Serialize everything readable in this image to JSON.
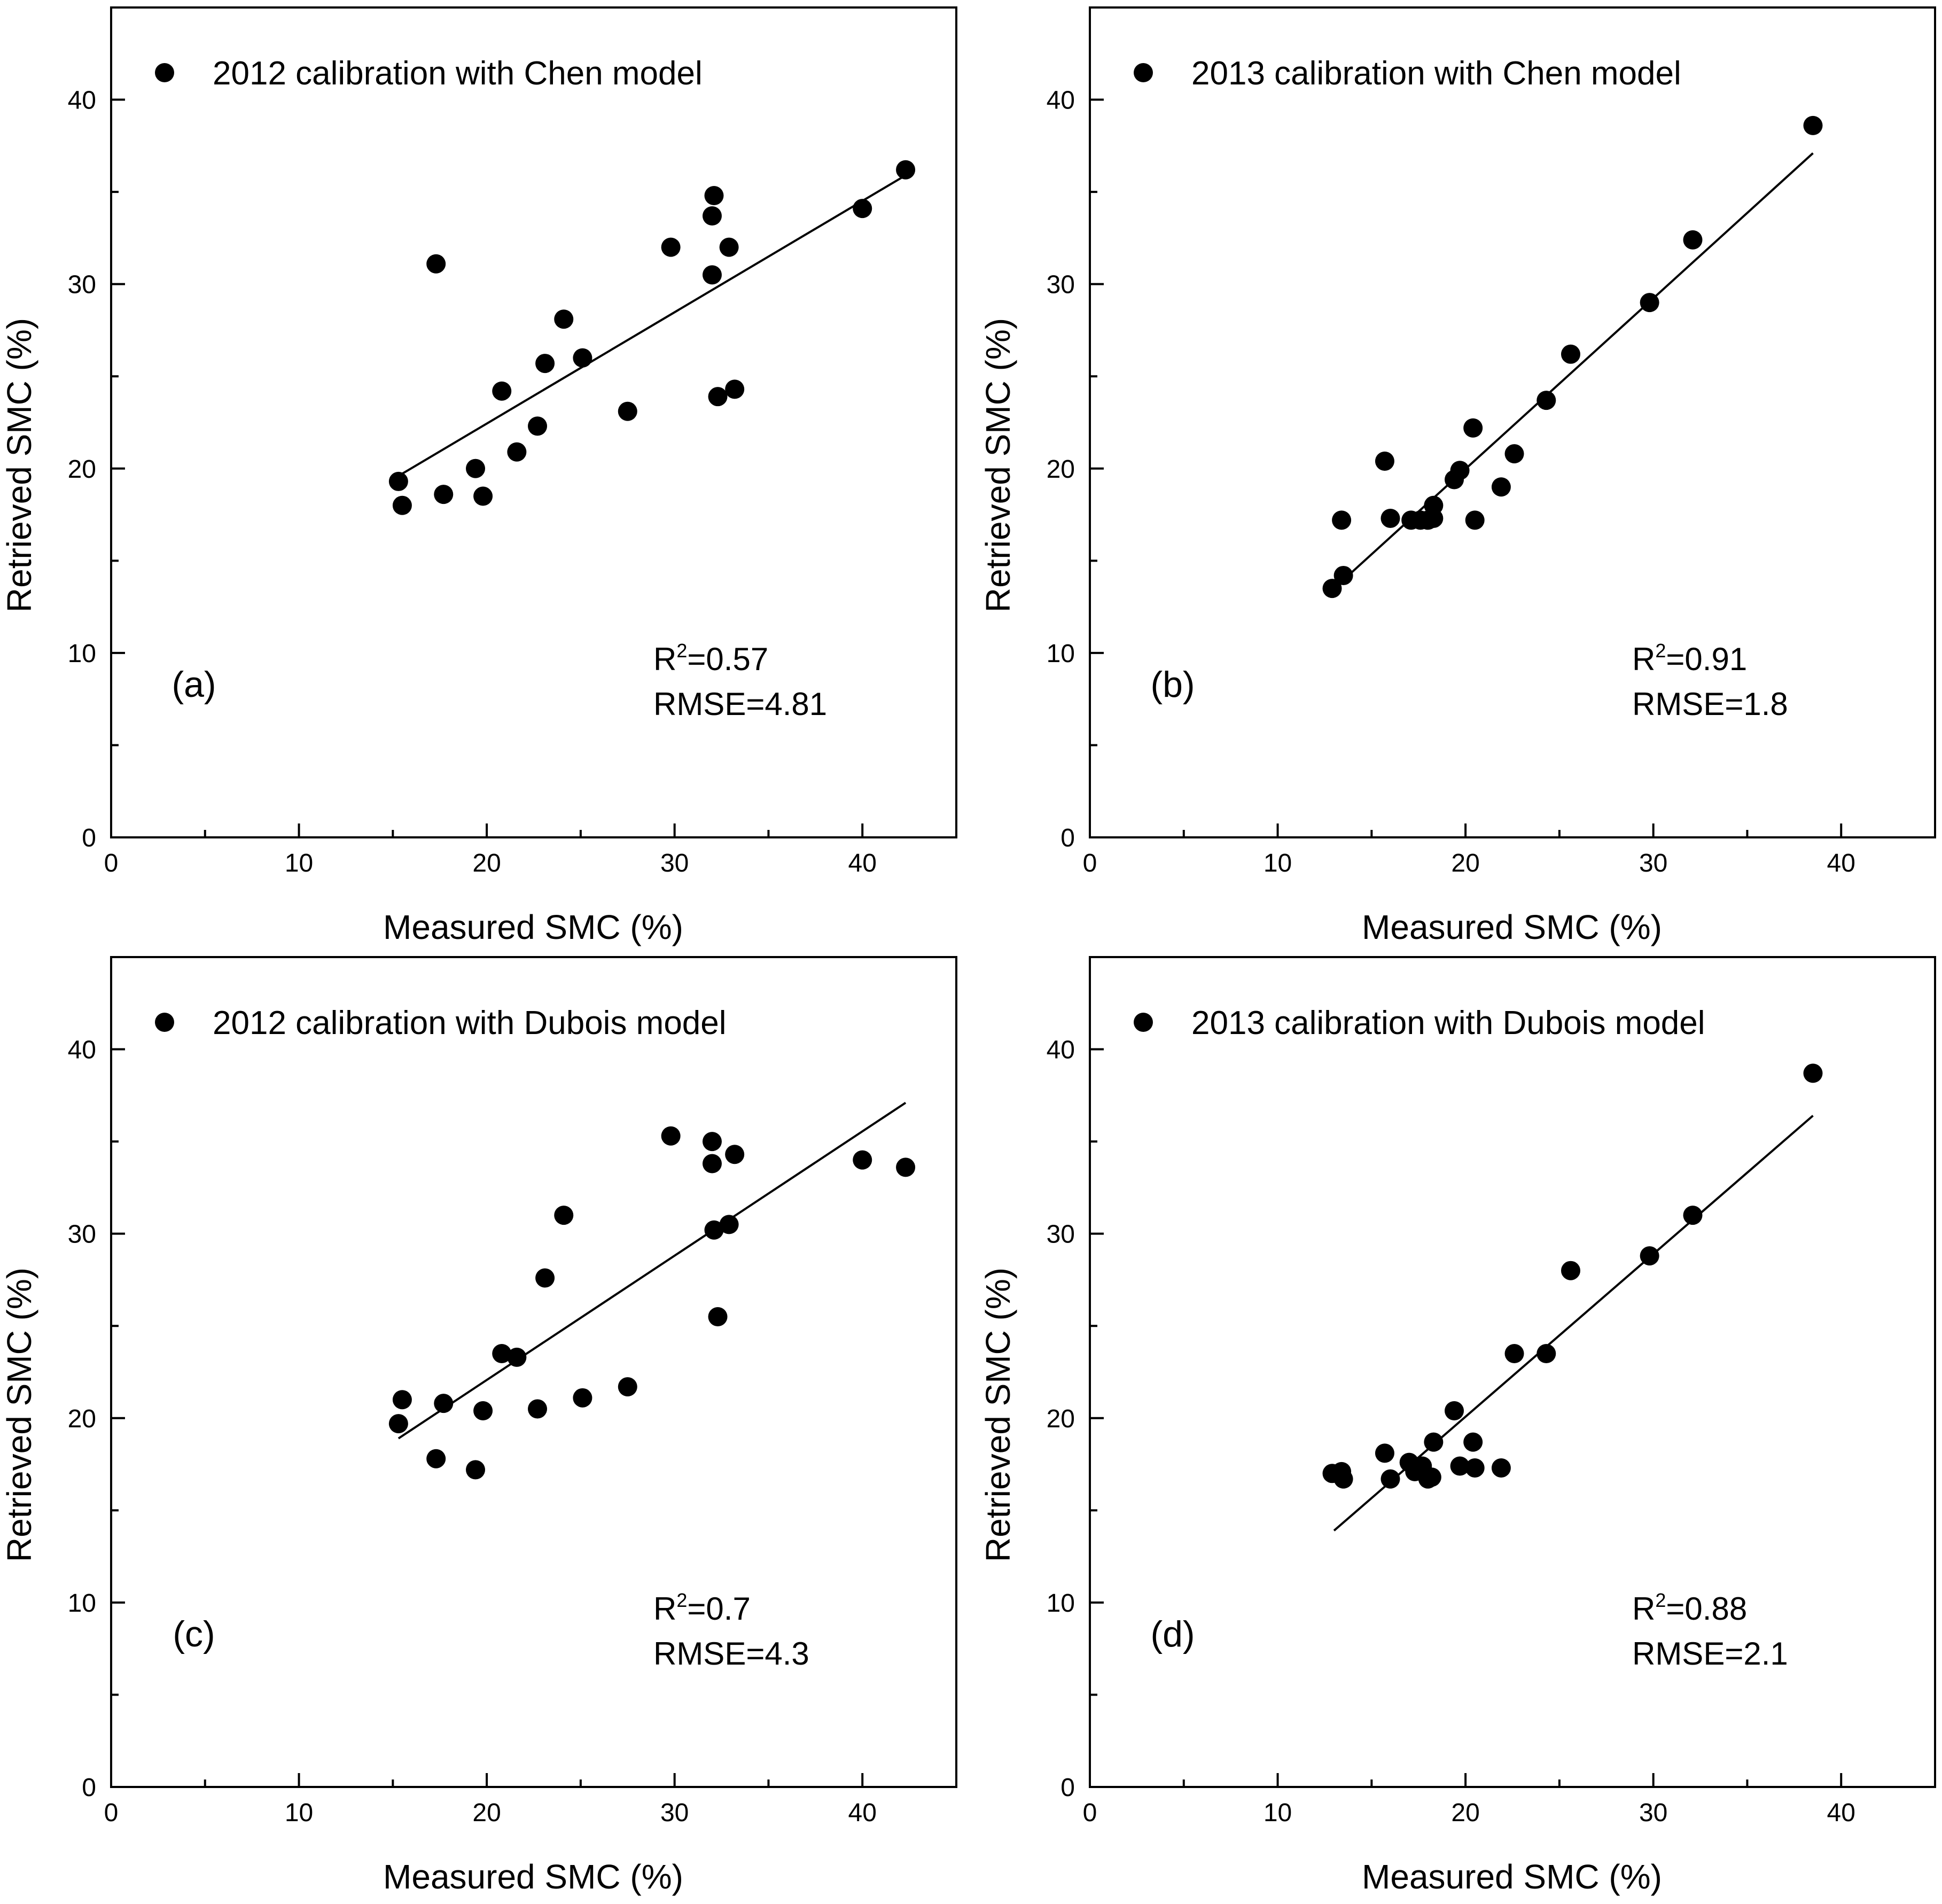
{
  "chart_data": [
    {
      "type": "scatter",
      "panel_label": "(a)",
      "legend": "2012 calibration with Chen model",
      "xlabel": "Measured SMC (%)",
      "ylabel": "Retrieved SMC (%)",
      "xlim": [
        0,
        45
      ],
      "ylim": [
        0,
        45
      ],
      "xticks": [
        0,
        10,
        20,
        30,
        40
      ],
      "yticks": [
        0,
        10,
        20,
        30,
        40
      ],
      "stats": {
        "r2_prefix": "R",
        "r2_sup": "2",
        "r2_value": "=0.57",
        "rmse": "RMSE=4.81"
      },
      "fit_line": [
        [
          15.3,
          19.6
        ],
        [
          42.3,
          35.9
        ]
      ],
      "points": [
        [
          15.3,
          19.3
        ],
        [
          15.5,
          18.0
        ],
        [
          17.3,
          31.1
        ],
        [
          17.7,
          18.6
        ],
        [
          19.4,
          20.0
        ],
        [
          19.8,
          18.5
        ],
        [
          20.8,
          24.2
        ],
        [
          21.6,
          20.9
        ],
        [
          22.7,
          22.3
        ],
        [
          23.1,
          25.7
        ],
        [
          24.1,
          28.1
        ],
        [
          25.1,
          26.0
        ],
        [
          27.5,
          23.1
        ],
        [
          29.8,
          32.0
        ],
        [
          32.0,
          33.7
        ],
        [
          32.1,
          34.8
        ],
        [
          32.0,
          30.5
        ],
        [
          32.3,
          23.9
        ],
        [
          32.9,
          32.0
        ],
        [
          33.2,
          24.3
        ],
        [
          40.0,
          34.1
        ],
        [
          42.3,
          36.2
        ]
      ]
    },
    {
      "type": "scatter",
      "panel_label": "(b)",
      "legend": "2013 calibration with Chen model",
      "xlabel": "Measured SMC (%)",
      "ylabel": "Retrieved SMC (%)",
      "xlim": [
        0,
        45
      ],
      "ylim": [
        0,
        45
      ],
      "xticks": [
        0,
        10,
        20,
        30,
        40
      ],
      "yticks": [
        0,
        10,
        20,
        30,
        40
      ],
      "stats": {
        "r2_prefix": "R",
        "r2_sup": "2",
        "r2_value": "=0.91",
        "rmse": "RMSE=1.8"
      },
      "fit_line": [
        [
          13.0,
          13.5
        ],
        [
          38.5,
          37.1
        ]
      ],
      "points": [
        [
          12.9,
          13.5
        ],
        [
          13.4,
          17.2
        ],
        [
          13.5,
          14.2
        ],
        [
          15.7,
          20.4
        ],
        [
          16.0,
          17.3
        ],
        [
          17.1,
          17.2
        ],
        [
          17.6,
          17.2
        ],
        [
          18.0,
          17.2
        ],
        [
          18.3,
          17.3
        ],
        [
          18.3,
          18.0
        ],
        [
          19.4,
          19.4
        ],
        [
          19.7,
          19.9
        ],
        [
          20.4,
          22.2
        ],
        [
          20.5,
          17.2
        ],
        [
          21.9,
          19.0
        ],
        [
          22.6,
          20.8
        ],
        [
          24.3,
          23.7
        ],
        [
          25.6,
          26.2
        ],
        [
          29.8,
          29.0
        ],
        [
          32.1,
          32.4
        ],
        [
          38.5,
          38.6
        ]
      ]
    },
    {
      "type": "scatter",
      "panel_label": "(c)",
      "legend": "2012 calibration with Dubois model",
      "xlabel": "Measured SMC (%)",
      "ylabel": "Retrieved SMC (%)",
      "xlim": [
        0,
        45
      ],
      "ylim": [
        0,
        45
      ],
      "xticks": [
        0,
        10,
        20,
        30,
        40
      ],
      "yticks": [
        0,
        10,
        20,
        30,
        40
      ],
      "stats": {
        "r2_prefix": "R",
        "r2_sup": "2",
        "r2_value": "=0.7",
        "rmse": "RMSE=4.3"
      },
      "fit_line": [
        [
          15.3,
          18.9
        ],
        [
          42.3,
          37.1
        ]
      ],
      "points": [
        [
          15.3,
          19.7
        ],
        [
          15.5,
          21.0
        ],
        [
          17.3,
          17.8
        ],
        [
          17.7,
          20.8
        ],
        [
          19.4,
          17.2
        ],
        [
          19.8,
          20.4
        ],
        [
          20.8,
          23.5
        ],
        [
          21.6,
          23.3
        ],
        [
          22.7,
          20.5
        ],
        [
          23.1,
          27.6
        ],
        [
          24.1,
          31.0
        ],
        [
          25.1,
          21.1
        ],
        [
          27.5,
          21.7
        ],
        [
          29.8,
          35.3
        ],
        [
          32.0,
          33.8
        ],
        [
          32.0,
          35.0
        ],
        [
          32.1,
          30.2
        ],
        [
          32.3,
          25.5
        ],
        [
          32.9,
          30.5
        ],
        [
          33.2,
          34.3
        ],
        [
          40.0,
          34.0
        ],
        [
          42.3,
          33.6
        ]
      ]
    },
    {
      "type": "scatter",
      "panel_label": "(d)",
      "legend": "2013 calibration with Dubois model",
      "xlabel": "Measured SMC (%)",
      "ylabel": "Retrieved SMC (%)",
      "xlim": [
        0,
        45
      ],
      "ylim": [
        0,
        45
      ],
      "xticks": [
        0,
        10,
        20,
        30,
        40
      ],
      "yticks": [
        0,
        10,
        20,
        30,
        40
      ],
      "stats": {
        "r2_prefix": "R",
        "r2_sup": "2",
        "r2_value": "=0.88",
        "rmse": "RMSE=2.1"
      },
      "fit_line": [
        [
          13.0,
          13.9
        ],
        [
          38.5,
          36.4
        ]
      ],
      "points": [
        [
          12.9,
          17.0
        ],
        [
          13.4,
          17.1
        ],
        [
          13.5,
          16.7
        ],
        [
          15.7,
          18.1
        ],
        [
          16.0,
          16.7
        ],
        [
          17.0,
          17.6
        ],
        [
          17.3,
          17.1
        ],
        [
          17.7,
          17.4
        ],
        [
          18.0,
          16.7
        ],
        [
          18.2,
          16.8
        ],
        [
          18.3,
          18.7
        ],
        [
          19.4,
          20.4
        ],
        [
          19.7,
          17.4
        ],
        [
          20.4,
          18.7
        ],
        [
          20.5,
          17.3
        ],
        [
          21.9,
          17.3
        ],
        [
          22.6,
          23.5
        ],
        [
          24.3,
          23.5
        ],
        [
          25.6,
          28.0
        ],
        [
          29.8,
          28.8
        ],
        [
          32.1,
          31.0
        ],
        [
          38.5,
          38.7
        ]
      ]
    }
  ]
}
